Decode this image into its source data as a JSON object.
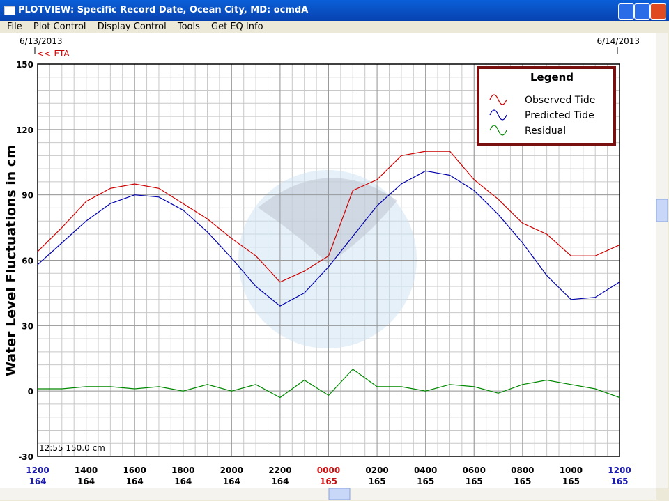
{
  "window": {
    "title": "PLOTVIEW: Specific Record Date, Ocean City, MD: ocmdA"
  },
  "menu": [
    "File",
    "Plot Control",
    "Display Control",
    "Tools",
    "Get EQ Info"
  ],
  "chart_data": {
    "type": "line",
    "start_date": "6/13/2013",
    "end_date": "6/14/2013",
    "marker_label": "<<-ETA",
    "y_label": "Water Level Fluctuations in cm",
    "cursor_readout": "12:55 150.0 cm",
    "legend_title": "Legend",
    "grid": true,
    "x": [
      0,
      1,
      2,
      3,
      4,
      5,
      6,
      7,
      8,
      9,
      10,
      11,
      12,
      13,
      14,
      15,
      16,
      17,
      18,
      19,
      20,
      21,
      22,
      23,
      24
    ],
    "xlim": [
      0,
      24
    ],
    "xticks": [
      {
        "value": 0,
        "label": "1200",
        "day": "164",
        "color": "#1c1cb4"
      },
      {
        "value": 2,
        "label": "1400",
        "day": "164",
        "color": "#000000"
      },
      {
        "value": 4,
        "label": "1600",
        "day": "164",
        "color": "#000000"
      },
      {
        "value": 6,
        "label": "1800",
        "day": "164",
        "color": "#000000"
      },
      {
        "value": 8,
        "label": "2000",
        "day": "164",
        "color": "#000000"
      },
      {
        "value": 10,
        "label": "2200",
        "day": "164",
        "color": "#000000"
      },
      {
        "value": 12,
        "label": "0000",
        "day": "165",
        "color": "#d01010"
      },
      {
        "value": 14,
        "label": "0200",
        "day": "165",
        "color": "#000000"
      },
      {
        "value": 16,
        "label": "0400",
        "day": "165",
        "color": "#000000"
      },
      {
        "value": 18,
        "label": "0600",
        "day": "165",
        "color": "#000000"
      },
      {
        "value": 20,
        "label": "0800",
        "day": "165",
        "color": "#000000"
      },
      {
        "value": 22,
        "label": "1000",
        "day": "165",
        "color": "#000000"
      },
      {
        "value": 24,
        "label": "1200",
        "day": "165",
        "color": "#1c1cb4"
      }
    ],
    "ylim": [
      -30,
      150
    ],
    "yticks": [
      -30,
      0,
      30,
      60,
      90,
      120,
      150
    ],
    "series": [
      {
        "name": "Observed Tide",
        "color": "#cc0000",
        "values": [
          64,
          75,
          87,
          93,
          95,
          93,
          86,
          79,
          70,
          62,
          50,
          55,
          62,
          92,
          97,
          108,
          110,
          110,
          97,
          88,
          77,
          72,
          62,
          62,
          67
        ]
      },
      {
        "name": "Predicted Tide",
        "color": "#0000aa",
        "values": [
          58,
          68,
          78,
          86,
          90,
          89,
          83,
          73,
          61,
          48,
          39,
          45,
          57,
          71,
          85,
          95,
          101,
          99,
          92,
          81,
          68,
          53,
          42,
          43,
          50
        ]
      },
      {
        "name": "Residual",
        "color": "#008800",
        "values": [
          1,
          1,
          2,
          2,
          1,
          2,
          0,
          3,
          0,
          3,
          -3,
          5,
          -2,
          10,
          2,
          2,
          0,
          3,
          2,
          -1,
          3,
          5,
          3,
          1,
          -3
        ]
      }
    ]
  }
}
